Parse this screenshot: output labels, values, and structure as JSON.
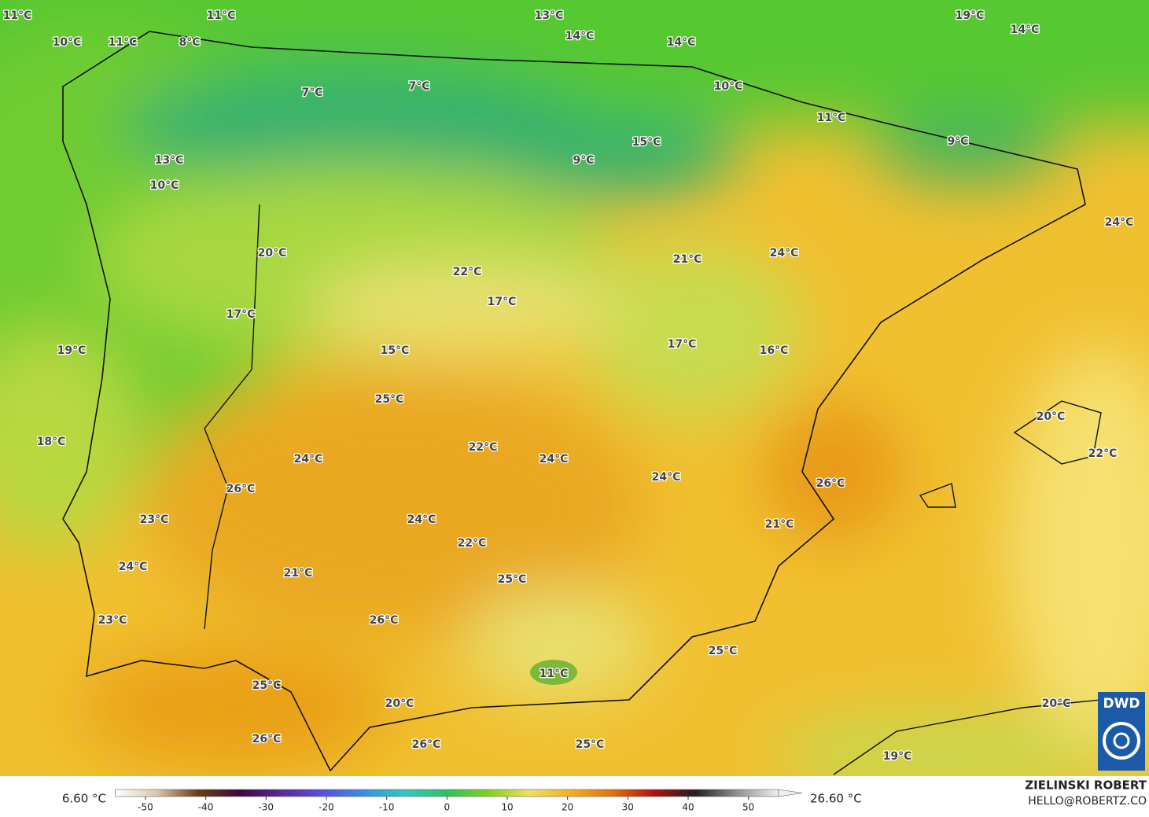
{
  "map": {
    "labels": [
      "11°C",
      "11°C",
      "13°C",
      "19°C",
      "14°C",
      "14°C",
      "14°C",
      "10°C",
      "11°C",
      "8°C",
      "7°C",
      "7°C",
      "10°C",
      "11°C",
      "9°C",
      "15°C",
      "9°C",
      "13°C",
      "10°C",
      "24°C",
      "20°C",
      "24°C",
      "21°C",
      "22°C",
      "17°C",
      "17°C",
      "19°C",
      "15°C",
      "17°C",
      "16°C",
      "25°C",
      "20°C",
      "18°C",
      "22°C",
      "24°C",
      "24°C",
      "24°C",
      "22°C",
      "26°C",
      "26°C",
      "23°C",
      "24°C",
      "21°C",
      "22°C",
      "24°C",
      "21°C",
      "25°C",
      "23°C",
      "26°C",
      "25°C",
      "11°C",
      "25°C",
      "20°C",
      "20°C",
      "26°C",
      "26°C",
      "25°C",
      "19°C"
    ]
  },
  "colorbar": {
    "min_label": "6.60 °C",
    "max_label": "26.60 °C",
    "range": [
      -55,
      55
    ],
    "ticks": [
      -50,
      -40,
      -30,
      -20,
      -10,
      0,
      10,
      20,
      30,
      40,
      50
    ],
    "colors": [
      "#ffffff",
      "#d8c8b0",
      "#6a3a1a",
      "#3a0a3a",
      "#5a2a9a",
      "#5a50e0",
      "#3a90e0",
      "#30c8c0",
      "#30c060",
      "#80d020",
      "#f0e060",
      "#f0b020",
      "#e07010",
      "#b01010",
      "#202020",
      "#909090",
      "#f0f0f0"
    ]
  },
  "credit": {
    "author": "ZIELINSKI ROBERT",
    "email": "HELLO@ROBERTZ.CO",
    "logo": "DWD"
  }
}
